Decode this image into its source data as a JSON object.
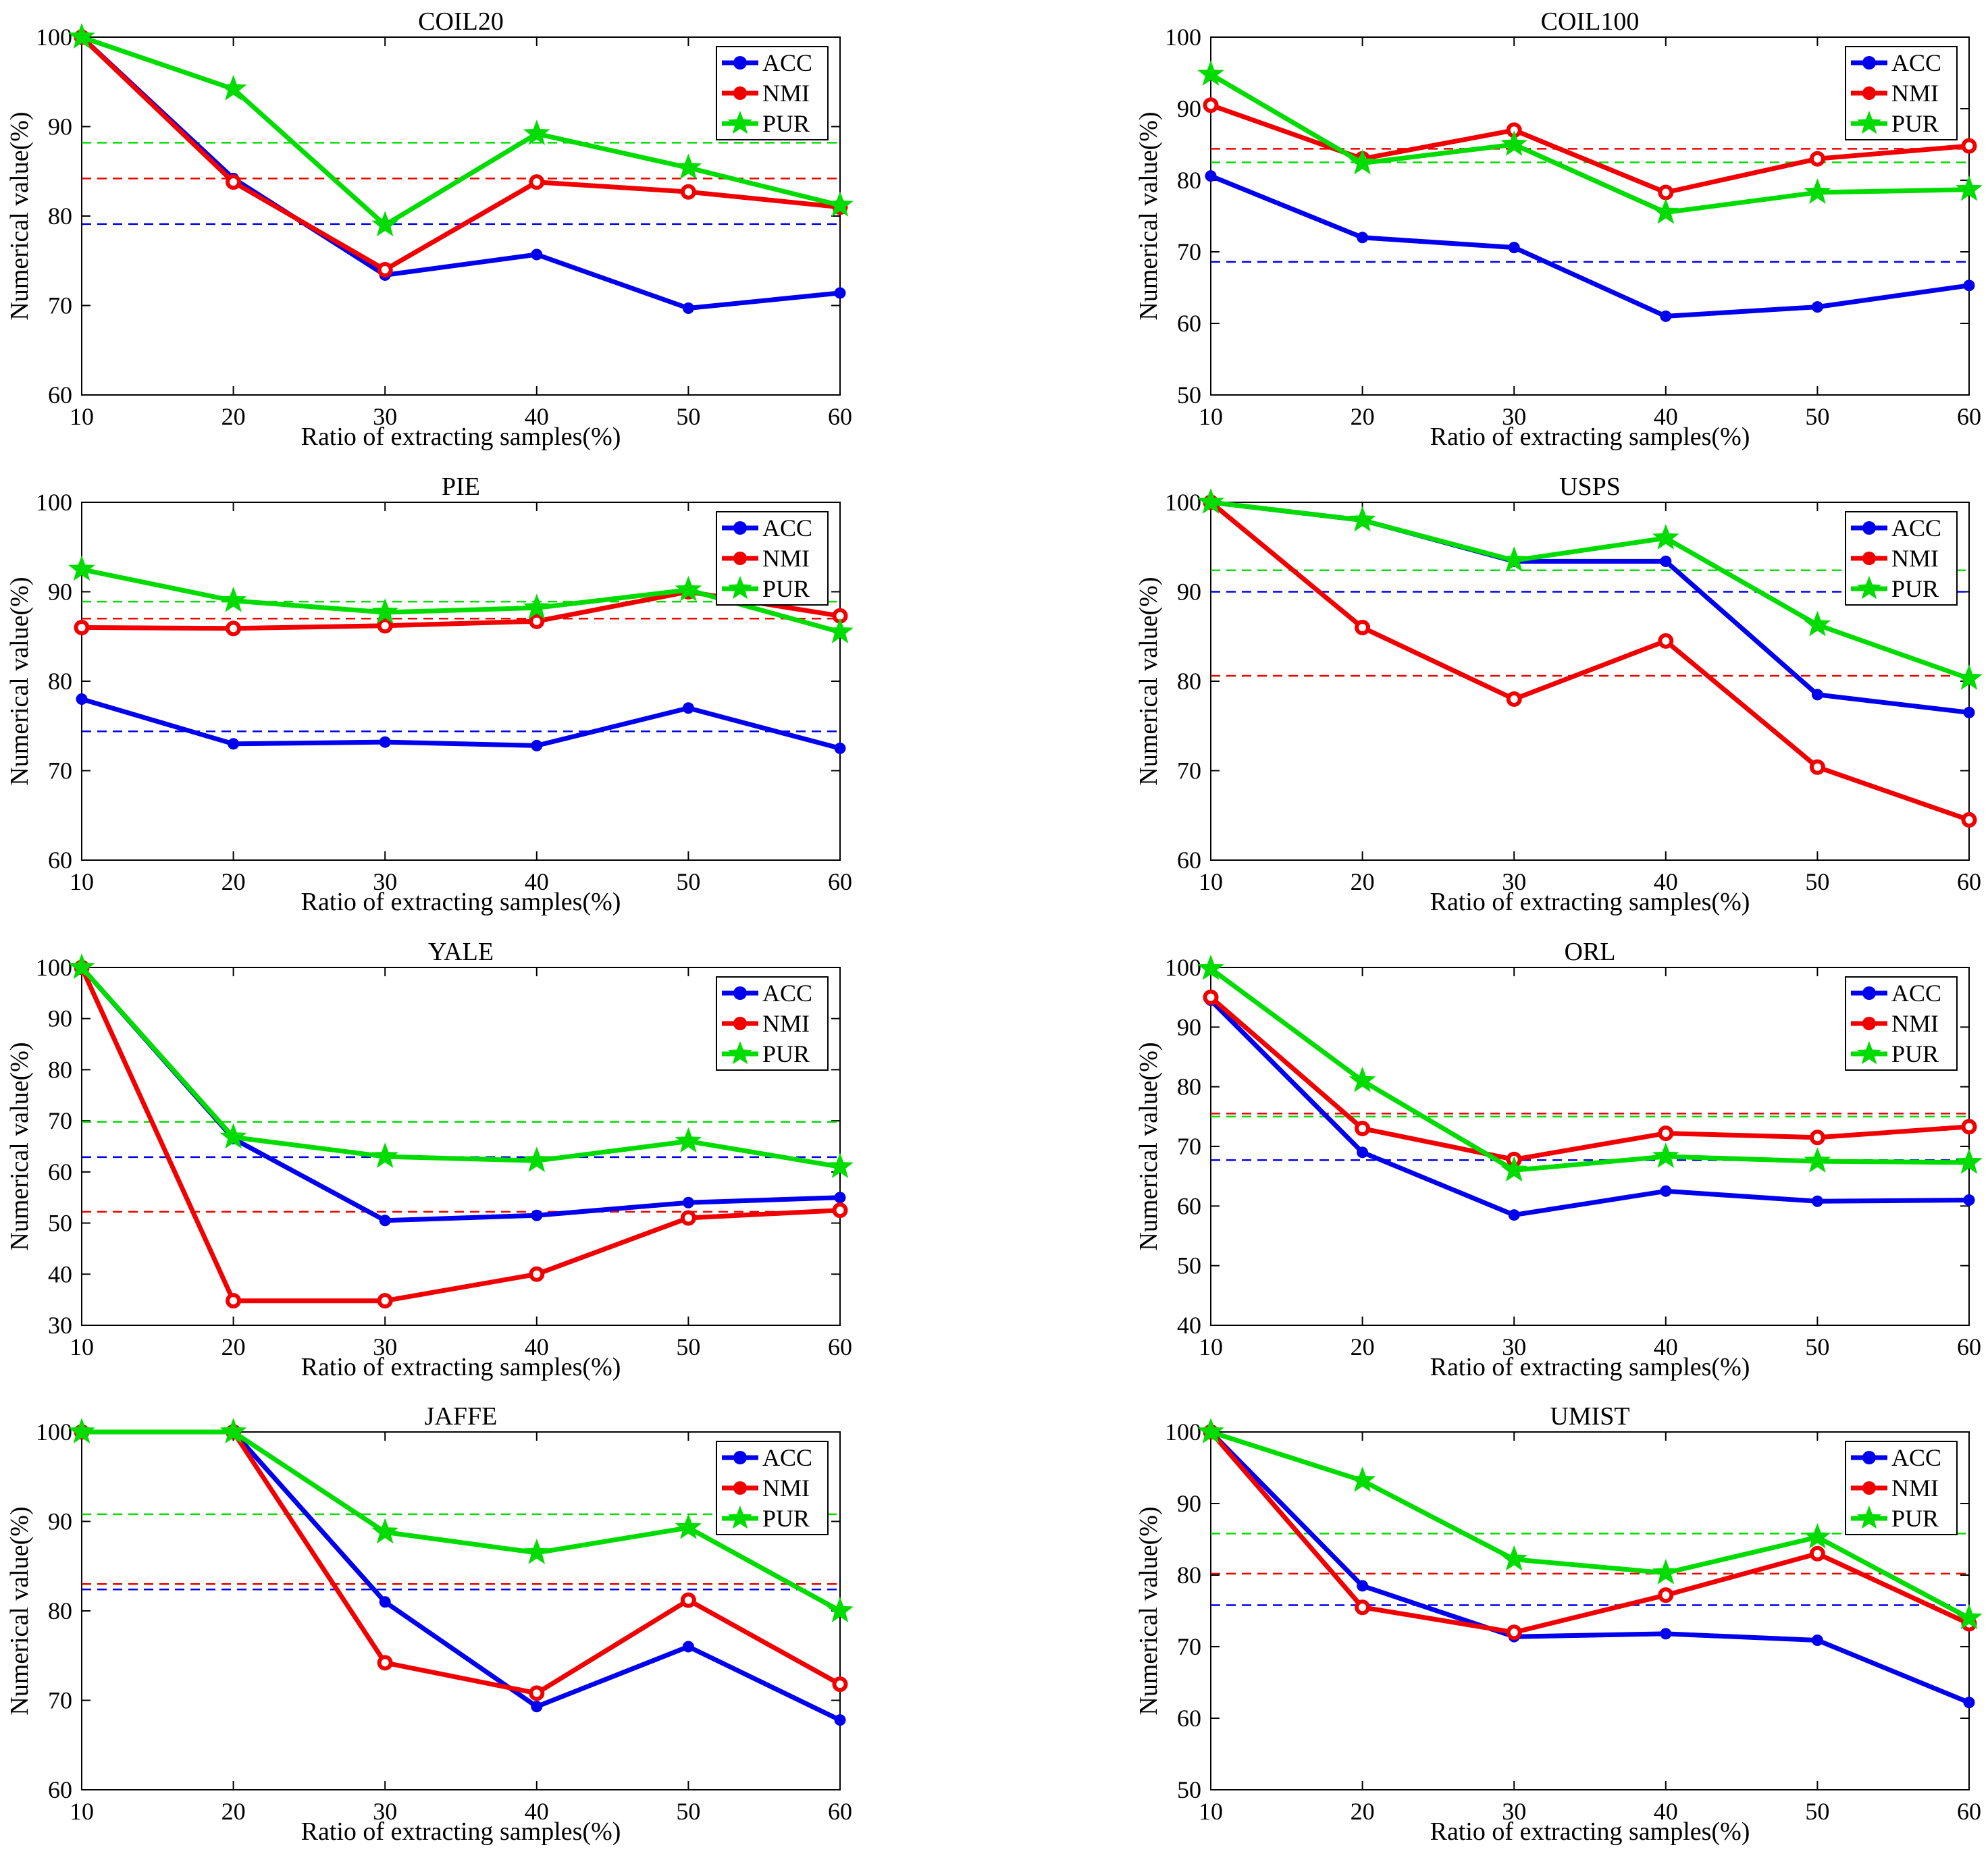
{
  "figure": {
    "xlabel": "Ratio of extracting samples(%)",
    "ylabel": "Numerical value(%)",
    "x_ticks": [
      10,
      20,
      30,
      40,
      50,
      60
    ],
    "legend_labels": [
      "ACC",
      "NMI",
      "PUR"
    ],
    "colors": {
      "ACC": "#0000ee",
      "NMI": "#f00000",
      "PUR": "#00dc00"
    },
    "markers": {
      "ACC": "circle",
      "NMI": "open-circle",
      "PUR": "star"
    },
    "legend_position": "top-right",
    "grid": false,
    "mean_line_style": "dashed"
  },
  "chart_data": [
    {
      "type": "line",
      "title": "COIL20",
      "x": [
        10,
        20,
        30,
        40,
        50,
        60
      ],
      "ylim": [
        60,
        100
      ],
      "yticks": [
        60,
        70,
        80,
        90,
        100
      ],
      "series": [
        {
          "name": "ACC",
          "values": [
            100,
            84.2,
            73.4,
            75.7,
            69.7,
            71.4
          ],
          "mean": 79.1
        },
        {
          "name": "NMI",
          "values": [
            100,
            83.8,
            74.0,
            83.8,
            82.7,
            81.0
          ],
          "mean": 84.2
        },
        {
          "name": "PUR",
          "values": [
            100,
            94.2,
            79.0,
            89.2,
            85.4,
            81.2
          ],
          "mean": 88.2
        }
      ]
    },
    {
      "type": "line",
      "title": "COIL100",
      "x": [
        10,
        20,
        30,
        40,
        50,
        60
      ],
      "ylim": [
        50,
        100
      ],
      "yticks": [
        50,
        60,
        70,
        80,
        90,
        100
      ],
      "series": [
        {
          "name": "ACC",
          "values": [
            80.6,
            72.0,
            70.6,
            61.0,
            62.3,
            65.3
          ],
          "mean": 68.6
        },
        {
          "name": "NMI",
          "values": [
            90.5,
            83.0,
            87.0,
            78.3,
            83.0,
            84.8
          ],
          "mean": 84.4
        },
        {
          "name": "PUR",
          "values": [
            94.8,
            82.4,
            85.0,
            75.5,
            78.3,
            78.7
          ],
          "mean": 82.5
        }
      ]
    },
    {
      "type": "line",
      "title": "PIE",
      "x": [
        10,
        20,
        30,
        40,
        50,
        60
      ],
      "ylim": [
        60,
        100
      ],
      "yticks": [
        60,
        70,
        80,
        90,
        100
      ],
      "series": [
        {
          "name": "ACC",
          "values": [
            78.0,
            73.0,
            73.2,
            72.8,
            77.0,
            72.5
          ],
          "mean": 74.4
        },
        {
          "name": "NMI",
          "values": [
            86.0,
            85.9,
            86.2,
            86.7,
            90.0,
            87.3
          ],
          "mean": 87.0
        },
        {
          "name": "PUR",
          "values": [
            92.5,
            89.0,
            87.7,
            88.2,
            90.2,
            85.5
          ],
          "mean": 88.9
        }
      ]
    },
    {
      "type": "line",
      "title": "USPS",
      "x": [
        10,
        20,
        30,
        40,
        50,
        60
      ],
      "ylim": [
        60,
        100
      ],
      "yticks": [
        60,
        70,
        80,
        90,
        100
      ],
      "series": [
        {
          "name": "ACC",
          "values": [
            100,
            98.0,
            93.4,
            93.4,
            78.5,
            76.5
          ],
          "mean": 90.0
        },
        {
          "name": "NMI",
          "values": [
            100,
            86.0,
            78.0,
            84.5,
            70.4,
            64.5
          ],
          "mean": 80.6
        },
        {
          "name": "PUR",
          "values": [
            100,
            98.0,
            93.5,
            96.0,
            86.3,
            80.3
          ],
          "mean": 92.4
        }
      ]
    },
    {
      "type": "line",
      "title": "YALE",
      "x": [
        10,
        20,
        30,
        40,
        50,
        60
      ],
      "ylim": [
        30,
        100
      ],
      "yticks": [
        30,
        40,
        50,
        60,
        70,
        80,
        90,
        100
      ],
      "series": [
        {
          "name": "ACC",
          "values": [
            100,
            66.5,
            50.5,
            51.5,
            54.0,
            55.0
          ],
          "mean": 62.9
        },
        {
          "name": "NMI",
          "values": [
            100,
            34.8,
            34.8,
            40.0,
            51.0,
            52.5
          ],
          "mean": 52.2
        },
        {
          "name": "PUR",
          "values": [
            100,
            66.8,
            63.0,
            62.2,
            66.0,
            61.0
          ],
          "mean": 69.8
        }
      ]
    },
    {
      "type": "line",
      "title": "ORL",
      "x": [
        10,
        20,
        30,
        40,
        50,
        60
      ],
      "ylim": [
        40,
        100
      ],
      "yticks": [
        40,
        50,
        60,
        70,
        80,
        90,
        100
      ],
      "series": [
        {
          "name": "ACC",
          "values": [
            94.5,
            69.0,
            58.5,
            62.5,
            60.8,
            61.0
          ],
          "mean": 67.7
        },
        {
          "name": "NMI",
          "values": [
            95.0,
            73.0,
            67.8,
            72.2,
            71.5,
            73.3
          ],
          "mean": 75.5
        },
        {
          "name": "PUR",
          "values": [
            99.8,
            81.0,
            66.0,
            68.3,
            67.5,
            67.3
          ],
          "mean": 75.0
        }
      ]
    },
    {
      "type": "line",
      "title": "JAFFE",
      "x": [
        10,
        20,
        30,
        40,
        50,
        60
      ],
      "ylim": [
        60,
        100
      ],
      "yticks": [
        60,
        70,
        80,
        90,
        100
      ],
      "series": [
        {
          "name": "ACC",
          "values": [
            100,
            100,
            81.0,
            69.3,
            76.0,
            67.8
          ],
          "mean": 82.4
        },
        {
          "name": "NMI",
          "values": [
            100,
            100,
            74.2,
            70.8,
            81.2,
            71.8
          ],
          "mean": 83.0
        },
        {
          "name": "PUR",
          "values": [
            100,
            100,
            88.8,
            86.5,
            89.3,
            80.0
          ],
          "mean": 90.8
        }
      ]
    },
    {
      "type": "line",
      "title": "UMIST",
      "x": [
        10,
        20,
        30,
        40,
        50,
        60
      ],
      "ylim": [
        50,
        100
      ],
      "yticks": [
        50,
        60,
        70,
        80,
        90,
        100
      ],
      "series": [
        {
          "name": "ACC",
          "values": [
            100,
            78.5,
            71.4,
            71.8,
            70.9,
            62.2
          ],
          "mean": 75.8
        },
        {
          "name": "NMI",
          "values": [
            100,
            75.5,
            72.0,
            77.2,
            83.0,
            73.2
          ],
          "mean": 80.2
        },
        {
          "name": "PUR",
          "values": [
            100,
            93.2,
            82.2,
            80.3,
            85.3,
            74.0
          ],
          "mean": 85.8
        }
      ]
    }
  ]
}
